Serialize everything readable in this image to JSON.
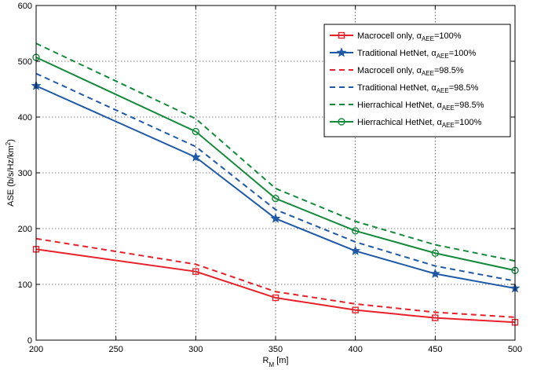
{
  "chart_data": {
    "type": "line",
    "title": "",
    "xlabel": {
      "main": "R",
      "sub": "M",
      "unit": " [m]"
    },
    "ylabel": {
      "main": "ASE (b/s/Hz/km",
      "sup": "2",
      "tail": ")"
    },
    "xlim": [
      200,
      500
    ],
    "ylim": [
      0,
      600
    ],
    "x_ticks": [
      200,
      250,
      300,
      350,
      400,
      450,
      500
    ],
    "y_ticks": [
      0,
      100,
      200,
      300,
      400,
      500,
      600
    ],
    "grid": true,
    "legend_position": "top-right",
    "x": [
      200,
      300,
      350,
      400,
      450,
      500
    ],
    "series": [
      {
        "id": "macro100",
        "name": {
          "pre": "Macrocell only, ",
          "alpha": "α",
          "sub": "AEE",
          "post": "=100%"
        },
        "color": "#e8202a",
        "dash": "solid",
        "marker": "square",
        "values": [
          163,
          123,
          76,
          54,
          40,
          32
        ]
      },
      {
        "id": "trad100",
        "name": {
          "pre": "Traditional HetNet, ",
          "alpha": "α",
          "sub": "AEE",
          "post": "=100%"
        },
        "color": "#1f5aa8",
        "dash": "solid",
        "marker": "star",
        "values": [
          456,
          328,
          218,
          160,
          119,
          93
        ]
      },
      {
        "id": "macro985",
        "name": {
          "pre": "Macrocell only, ",
          "alpha": "α",
          "sub": "AEE",
          "post": "=98.5%"
        },
        "color": "#e8202a",
        "dash": "dashed",
        "marker": "none",
        "values": [
          182,
          136,
          87,
          65,
          50,
          41
        ]
      },
      {
        "id": "trad985",
        "name": {
          "pre": "Traditional HetNet, ",
          "alpha": "α",
          "sub": "AEE",
          "post": "=98.5%"
        },
        "color": "#1f5aa8",
        "dash": "dashed",
        "marker": "none",
        "values": [
          478,
          347,
          234,
          176,
          133,
          106
        ]
      },
      {
        "id": "hier985",
        "name": {
          "pre": "Hierrachical HetNet, ",
          "alpha": "α",
          "sub": "AEE",
          "post": "=98.5%"
        },
        "color": "#138a3a",
        "dash": "dashed",
        "marker": "none",
        "values": [
          532,
          397,
          272,
          213,
          171,
          142
        ]
      },
      {
        "id": "hier100",
        "name": {
          "pre": "Hierrachical HetNet, ",
          "alpha": "α",
          "sub": "AEE",
          "post": "=100%"
        },
        "color": "#138a3a",
        "dash": "solid",
        "marker": "circle",
        "values": [
          507,
          374,
          254,
          196,
          156,
          125
        ]
      }
    ]
  }
}
